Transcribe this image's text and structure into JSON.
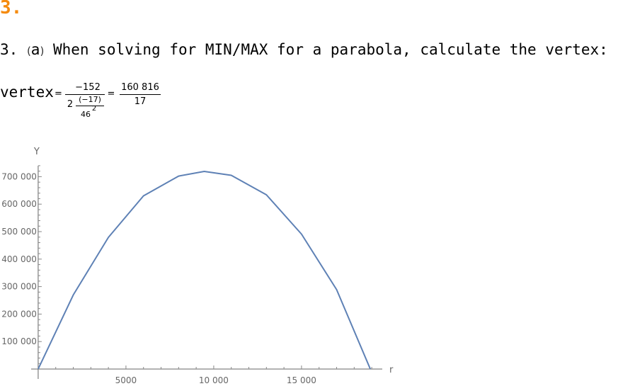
{
  "section": {
    "number": "3."
  },
  "problem": {
    "prefix": "3. ",
    "part_open": "(",
    "part_letter": "a",
    "part_close": ")",
    "text": " When solving for MIN/MAX for a parabola, calculate the vertex:"
  },
  "formula": {
    "label": "vertex",
    "equals1": "=",
    "numerator": "−152",
    "two": "2",
    "inner_num": "(−17)",
    "inner_den_base": "46",
    "inner_den_exp": "2",
    "equals2": "=",
    "result_num": "160 816",
    "result_den": "17"
  },
  "chart_data": {
    "type": "line",
    "title": "",
    "xlabel": "r",
    "ylabel": "Y",
    "xlim": [
      -400,
      19600
    ],
    "ylim": [
      0,
      750000
    ],
    "x_ticks": [
      5000,
      10000,
      15000
    ],
    "x_tick_labels": [
      "5000",
      "10 000",
      "15 000"
    ],
    "y_ticks": [
      100000,
      200000,
      300000,
      400000,
      500000,
      600000,
      700000
    ],
    "y_tick_labels": [
      "100 000",
      "200 000",
      "300 000",
      "400 000",
      "500 000",
      "600 000",
      "700 000"
    ],
    "series": [
      {
        "x": [
          0,
          2000,
          4000,
          6000,
          8000,
          9459.76,
          11000,
          13000,
          15000,
          17000,
          18919.5
        ],
        "y": [
          0,
          269700,
          479200,
          630200,
          702000,
          719000,
          705000,
          634000,
          491000,
          289000,
          0
        ]
      }
    ],
    "color": "#5e81b5",
    "grid": false
  }
}
